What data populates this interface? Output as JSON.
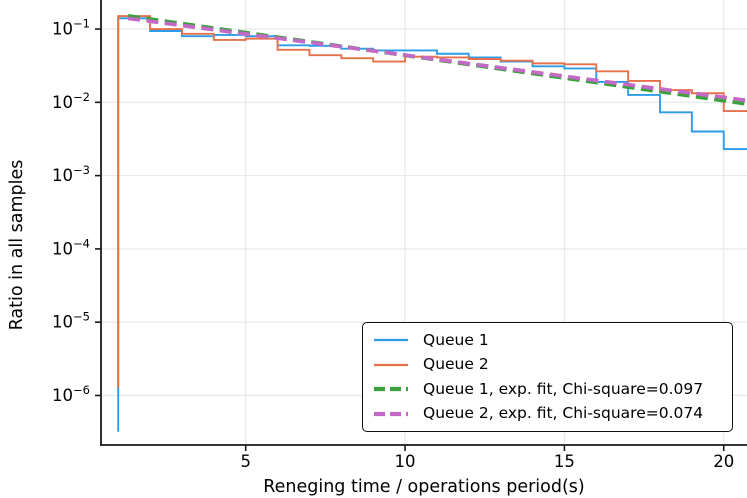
{
  "figure": {
    "xlabel": "Reneging time / operations period(s)",
    "ylabel": "Ratio in all samples",
    "background_color": "#ffffff",
    "grid_color": "#e6e6e6",
    "spine_color": "#1a1a1a"
  },
  "chart_data": {
    "type": "step-histogram",
    "y_scale": "log",
    "x_axis": {
      "label": "Reneging time / operations period(s)",
      "ticks": [
        5,
        10,
        15,
        20
      ],
      "range": [
        0.46,
        20.73
      ]
    },
    "y_axis": {
      "label": "Ratio in all samples",
      "scale": "log",
      "tick_exponents": [
        -1,
        -2,
        -3,
        -4,
        -5,
        -6
      ],
      "range": [
        2.11e-07,
        0.249
      ]
    },
    "bin_edges": [
      1,
      2,
      3,
      4,
      5,
      6,
      7,
      8,
      9,
      10,
      11,
      12,
      13,
      14,
      15,
      16,
      17,
      18,
      19,
      20,
      21
    ],
    "series": [
      {
        "name": "Queue 1",
        "style": "step",
        "color": "#2D9CEA",
        "line_width": 1.9,
        "start_value": 3.2e-07,
        "values": [
          0.14,
          0.094,
          0.08,
          0.083,
          0.08,
          0.06,
          0.059,
          0.054,
          0.051,
          0.051,
          0.046,
          0.041,
          0.036,
          0.031,
          0.029,
          0.019,
          0.0126,
          0.0073,
          0.004,
          0.0023
        ]
      },
      {
        "name": "Queue 2",
        "style": "step",
        "color": "#E6714B",
        "line_width": 1.9,
        "start_value": 1.3e-06,
        "values": [
          0.15,
          0.1,
          0.086,
          0.071,
          0.074,
          0.052,
          0.044,
          0.04,
          0.036,
          0.042,
          0.041,
          0.039,
          0.037,
          0.034,
          0.033,
          0.0265,
          0.0196,
          0.0147,
          0.0133,
          0.0076
        ]
      },
      {
        "name": "Queue 1, exp. fit, Chi-square=0.097",
        "style": "dashed-line",
        "color": "#3AA23C",
        "line_width": 3.8,
        "dash": [
          12,
          6.5
        ],
        "chi_square": 0.097,
        "x_start": 1.31,
        "y_start": 0.151,
        "x_end": 20.73,
        "y_end": 0.0095
      },
      {
        "name": "Queue 2, exp. fit, Chi-square=0.074",
        "style": "dashed-line",
        "color": "#C369C6",
        "line_width": 3.8,
        "dash": [
          12,
          6.5
        ],
        "chi_square": 0.074,
        "x_start": 1.31,
        "y_start": 0.14,
        "x_end": 20.73,
        "y_end": 0.0106
      }
    ],
    "legend": {
      "position": "lower right",
      "entries": [
        {
          "label": "Queue 1",
          "color": "#2D9CEA",
          "dash": false
        },
        {
          "label": "Queue 2",
          "color": "#E6714B",
          "dash": false
        },
        {
          "label": "Queue 1, exp. fit, Chi-square=0.097",
          "color": "#3AA23C",
          "dash": true
        },
        {
          "label": "Queue 2, exp. fit, Chi-square=0.074",
          "color": "#C369C6",
          "dash": true
        }
      ]
    }
  }
}
